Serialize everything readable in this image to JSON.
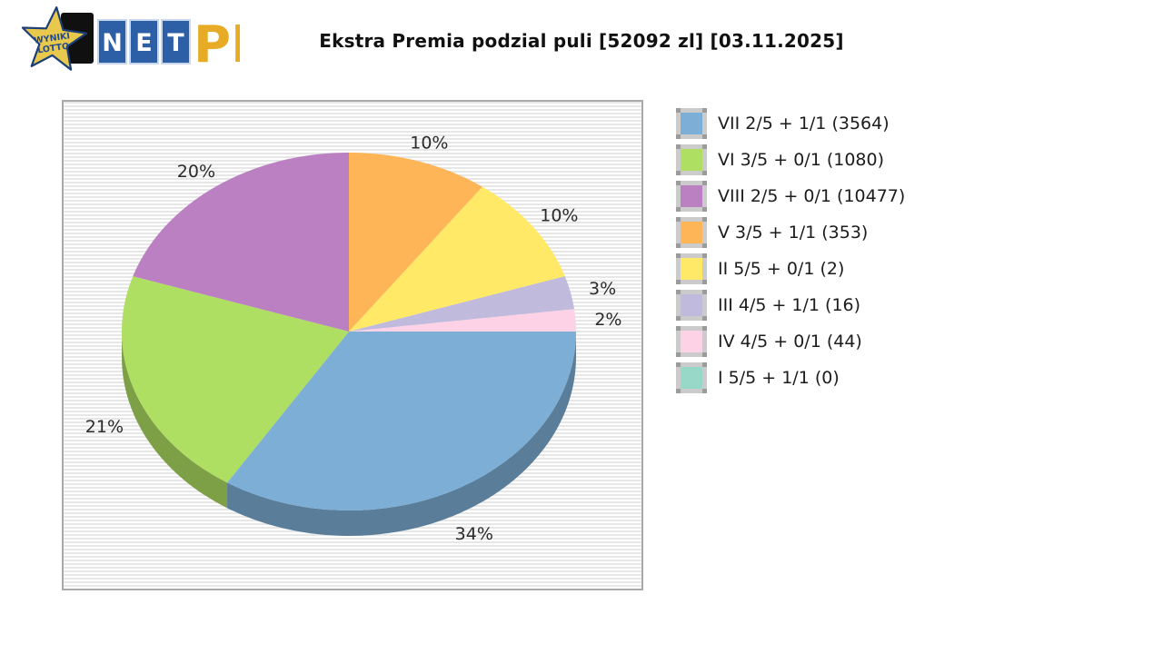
{
  "header": {
    "title": "Ekstra Premia podzial puli [52092 zl] [03.11.2025]",
    "logo": {
      "star_line1": "WYNIKI",
      "star_line2": "LOTTO",
      "net_letters": [
        "N",
        "E",
        "T"
      ],
      "suffix": "PL",
      "colors": {
        "star_fill": "#e9c94d",
        "star_outline": "#1c3f77",
        "tile_blue": "#2d5fa6",
        "tile_border": "#c7d7ee",
        "suffix_gold": "#e7ab25",
        "backdrop_black": "#101010"
      }
    }
  },
  "chart_data": {
    "type": "pie",
    "title": "Ekstra Premia podzial puli [52092 zl] [03.11.2025]",
    "pool_total_zl": 52092,
    "date": "03.11.2025",
    "style": "3d-pie",
    "legend_position": "right",
    "grid": "striped-panel-background",
    "slices": [
      {
        "label": "VII 2/5 + 1/1 (3564)",
        "tier": "VII 2/5 + 1/1",
        "count": 3564,
        "percent": 34,
        "color": "#7dafd6"
      },
      {
        "label": "VI 3/5 + 0/1 (1080)",
        "tier": "VI 3/5 + 0/1",
        "count": 1080,
        "percent": 21,
        "color": "#aede62"
      },
      {
        "label": "VIII 2/5 + 0/1 (10477)",
        "tier": "VIII 2/5 + 0/1",
        "count": 10477,
        "percent": 20,
        "color": "#bb80c2"
      },
      {
        "label": "V 3/5 + 1/1 (353)",
        "tier": "V 3/5 + 1/1",
        "count": 353,
        "percent": 10,
        "color": "#feb558"
      },
      {
        "label": "II 5/5 + 0/1 (2)",
        "tier": "II 5/5 + 0/1",
        "count": 2,
        "percent": 10,
        "color": "#ffe966"
      },
      {
        "label": "III 4/5 + 1/1 (16)",
        "tier": "III 4/5 + 1/1",
        "count": 16,
        "percent": 3,
        "color": "#c0badc"
      },
      {
        "label": "IV 4/5 + 0/1 (44)",
        "tier": "IV 4/5 + 0/1",
        "count": 44,
        "percent": 2,
        "color": "#fed2e6"
      },
      {
        "label": "I 5/5 + 1/1 (0)",
        "tier": "I 5/5 + 1/1",
        "count": 0,
        "percent": 0,
        "color": "#98d8c8"
      }
    ],
    "percent_labels_shown": [
      "34%",
      "21%",
      "20%",
      "10%",
      "10%",
      "3%",
      "2%"
    ],
    "start_angle": "3 o'clock, clockwise, legend order"
  }
}
